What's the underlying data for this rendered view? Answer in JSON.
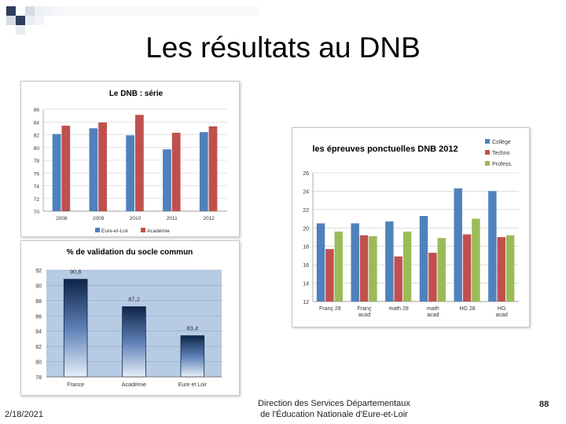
{
  "slide": {
    "title": "Les résultats au DNB",
    "date": "2/18/2021",
    "footer_line1": "Direction des Services Départementaux",
    "footer_line2": "de l'Éducation Nationale d'Eure-et-Loir",
    "page_number": "88"
  },
  "chart_data": [
    {
      "type": "bar",
      "title": "Le DNB : série",
      "categories": [
        "2008",
        "2009",
        "2010",
        "2011",
        "2012"
      ],
      "series": [
        {
          "name": "Eure-et-Loir",
          "color": "#4f81bd",
          "values": [
            82.1,
            83.0,
            81.9,
            79.7,
            82.4
          ]
        },
        {
          "name": "Académie",
          "color": "#c0504d",
          "values": [
            83.4,
            83.9,
            85.1,
            82.3,
            83.3
          ]
        }
      ],
      "ylim": [
        70,
        86
      ],
      "yticks": [
        70,
        72,
        74,
        76,
        78,
        80,
        82,
        84,
        86
      ],
      "grid": true,
      "legend": "bottom"
    },
    {
      "type": "bar",
      "title": "% de validation du socle commun",
      "categories": [
        "France",
        "Académie",
        "Eure et Loir"
      ],
      "values": [
        90.8,
        87.2,
        83.4
      ],
      "data_labels": [
        "90,8",
        "87,2",
        "83,4"
      ],
      "ylim": [
        78,
        92
      ],
      "yticks": [
        78,
        80,
        82,
        84,
        86,
        88,
        90,
        92
      ],
      "grid": true,
      "colors": {
        "bar_dark": "#0f2548",
        "bar_light": "#e6eef9",
        "plot_bg": "#b7cce4"
      }
    },
    {
      "type": "bar",
      "title": "les épreuves ponctuelles DNB 2012",
      "categories": [
        "Franç 28",
        "Franç acad",
        "math 28",
        "math acad",
        "HG 28",
        "HG acad"
      ],
      "series": [
        {
          "name": "Collège",
          "color": "#4f81bd",
          "values": [
            20.5,
            20.5,
            20.7,
            21.3,
            24.3,
            24.0
          ]
        },
        {
          "name": "Techno",
          "color": "#c0504d",
          "values": [
            17.7,
            19.2,
            16.9,
            17.3,
            19.3,
            19.0
          ]
        },
        {
          "name": "Profess.",
          "color": "#9bbb59",
          "values": [
            19.6,
            19.1,
            19.6,
            18.9,
            21.0,
            19.2
          ]
        }
      ],
      "ylim": [
        12,
        26
      ],
      "yticks": [
        12,
        14,
        16,
        18,
        20,
        22,
        24,
        26
      ],
      "grid": true,
      "legend": "top-right"
    }
  ]
}
